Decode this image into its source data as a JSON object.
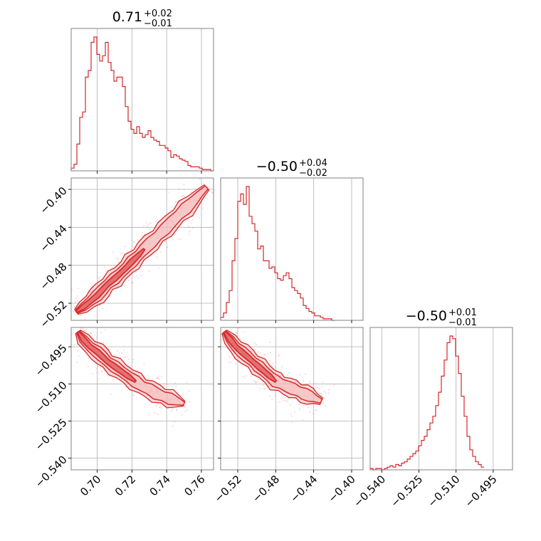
{
  "chart_data": {
    "type": "corner",
    "colors": {
      "line": "#d62728",
      "fill": "#f4b6b6",
      "grid": "#b0b0b0",
      "frame": "#808080"
    },
    "parameters": [
      {
        "title_value": "0.71",
        "title_plus": "+0.02",
        "title_minus": "−0.01",
        "range": [
          0.685,
          0.767
        ],
        "ticks": [
          0.7,
          0.72,
          0.74,
          0.76
        ],
        "tick_labels": [
          "0.70",
          "0.72",
          "0.74",
          "0.76"
        ]
      },
      {
        "title_value": "−0.50",
        "title_plus": "+0.04",
        "title_minus": "−0.02",
        "range": [
          -0.538,
          -0.388
        ],
        "ticks": [
          -0.52,
          -0.48,
          -0.44,
          -0.4
        ],
        "tick_labels": [
          "−0.52",
          "−0.48",
          "−0.44",
          "−0.40"
        ]
      },
      {
        "title_value": "−0.50",
        "title_plus": "+0.01",
        "title_minus": "−0.01",
        "range": [
          -0.5447,
          -0.4872
        ],
        "ticks": [
          -0.54,
          -0.525,
          -0.51,
          -0.495
        ],
        "tick_labels": [
          "−0.540",
          "−0.525",
          "−0.510",
          "−0.495"
        ]
      }
    ],
    "histograms": [
      {
        "x_start": 0.685,
        "bin_width": 0.00164,
        "counts": [
          2,
          5,
          20,
          40,
          44,
          70,
          75,
          96,
          100,
          87,
          82,
          86,
          96,
          81,
          75,
          67,
          70,
          70,
          63,
          48,
          37,
          31,
          28,
          33,
          28,
          25,
          27,
          30,
          25,
          23,
          22,
          19,
          19,
          17,
          15,
          10,
          12,
          11,
          9,
          8,
          7,
          4,
          3,
          3,
          3,
          2,
          1,
          1,
          1,
          0
        ]
      },
      {
        "x_start": -0.538,
        "bin_width": 0.003,
        "counts": [
          2,
          5,
          12,
          20,
          40,
          55,
          80,
          85,
          78,
          90,
          70,
          65,
          60,
          48,
          50,
          40,
          40,
          35,
          36,
          32,
          28,
          27,
          30,
          32,
          28,
          22,
          20,
          18,
          15,
          10,
          8,
          6,
          5,
          3,
          3,
          2,
          1,
          1,
          1,
          0
        ]
      },
      {
        "x_start": -0.5447,
        "bin_width": 0.00115,
        "counts": [
          1,
          0,
          1,
          1,
          0,
          1,
          2,
          3,
          2,
          4,
          3,
          5,
          6,
          8,
          10,
          12,
          14,
          18,
          22,
          25,
          30,
          35,
          40,
          48,
          58,
          70,
          82,
          95,
          100,
          98,
          85,
          72,
          55,
          40,
          25,
          15,
          10,
          6,
          4,
          2
        ]
      }
    ],
    "pairs": [
      {
        "x": 0,
        "y": 1,
        "points": [
          [
            0.688,
            -0.529
          ],
          [
            0.692,
            -0.524
          ],
          [
            0.696,
            -0.518
          ],
          [
            0.7,
            -0.512
          ],
          [
            0.703,
            -0.506
          ],
          [
            0.706,
            -0.5
          ],
          [
            0.71,
            -0.494
          ],
          [
            0.713,
            -0.489
          ],
          [
            0.717,
            -0.482
          ],
          [
            0.72,
            -0.476
          ],
          [
            0.724,
            -0.469
          ],
          [
            0.727,
            -0.463
          ],
          [
            0.731,
            -0.456
          ],
          [
            0.735,
            -0.449
          ],
          [
            0.739,
            -0.442
          ],
          [
            0.743,
            -0.434
          ],
          [
            0.747,
            -0.427
          ],
          [
            0.751,
            -0.42
          ],
          [
            0.755,
            -0.413
          ],
          [
            0.759,
            -0.405
          ],
          [
            0.763,
            -0.398
          ]
        ]
      },
      {
        "x": 0,
        "y": 2,
        "points": [
          [
            0.689,
            -0.489
          ],
          [
            0.692,
            -0.492
          ],
          [
            0.696,
            -0.495
          ],
          [
            0.7,
            -0.497
          ],
          [
            0.703,
            -0.499
          ],
          [
            0.706,
            -0.501
          ],
          [
            0.71,
            -0.503
          ],
          [
            0.714,
            -0.505
          ],
          [
            0.718,
            -0.507
          ],
          [
            0.722,
            -0.509
          ],
          [
            0.726,
            -0.511
          ],
          [
            0.73,
            -0.512
          ],
          [
            0.734,
            -0.514
          ],
          [
            0.738,
            -0.515
          ],
          [
            0.742,
            -0.516
          ],
          [
            0.746,
            -0.517
          ],
          [
            0.75,
            -0.518
          ]
        ]
      },
      {
        "x": 1,
        "y": 2,
        "points": [
          [
            -0.534,
            -0.489
          ],
          [
            -0.528,
            -0.492
          ],
          [
            -0.522,
            -0.495
          ],
          [
            -0.516,
            -0.497
          ],
          [
            -0.51,
            -0.499
          ],
          [
            -0.504,
            -0.501
          ],
          [
            -0.498,
            -0.503
          ],
          [
            -0.492,
            -0.505
          ],
          [
            -0.486,
            -0.507
          ],
          [
            -0.48,
            -0.509
          ],
          [
            -0.474,
            -0.51
          ],
          [
            -0.468,
            -0.511
          ],
          [
            -0.462,
            -0.512
          ],
          [
            -0.456,
            -0.513
          ],
          [
            -0.45,
            -0.514
          ],
          [
            -0.444,
            -0.515
          ],
          [
            -0.438,
            -0.516
          ],
          [
            -0.432,
            -0.517
          ]
        ]
      }
    ],
    "grid": true
  }
}
